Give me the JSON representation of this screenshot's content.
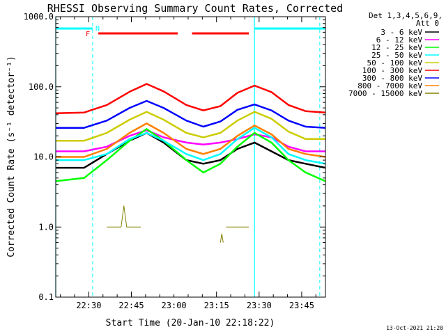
{
  "chart_data": {
    "type": "line",
    "title": "RHESSI Observing Summary Count Rates, Corrected",
    "xlabel": "Start Time (20-Jan-10 22:18:22)",
    "ylabel": "Corrected Count Rate (s⁻¹ detector⁻¹)",
    "y_scale": "log",
    "ylim": [
      0.1,
      1000
    ],
    "xlim_minutes_after_start": [
      0,
      95
    ],
    "y_tick_labels": [
      "0.1",
      "1.0",
      "10.0",
      "100.0",
      "1000.0"
    ],
    "x_tick_labels": [
      "22:30",
      "22:45",
      "23:00",
      "23:15",
      "23:30",
      "23:45"
    ],
    "detectors": "Det 1,3,4,5,6,9,",
    "attenuator": "Att 0",
    "flags": {
      "F": "F",
      "N": "N"
    },
    "timestamp": "13-Oct-2021 21:20",
    "series": [
      {
        "name": "3 - 6 keV",
        "color": "#000000",
        "x": [
          0,
          10,
          18,
          26,
          32,
          38,
          46,
          52,
          58,
          64,
          70,
          76,
          82,
          88,
          95
        ],
        "y": [
          7,
          7,
          11,
          17,
          22,
          16,
          9,
          8,
          9,
          13,
          16,
          12,
          9,
          8,
          7
        ]
      },
      {
        "name": "6 - 12 keV",
        "color": "#ff00ff",
        "x": [
          0,
          10,
          18,
          26,
          32,
          38,
          46,
          52,
          58,
          64,
          70,
          76,
          82,
          88,
          95
        ],
        "y": [
          12,
          12,
          14,
          20,
          24,
          19,
          16,
          15,
          16,
          18,
          21,
          19,
          14,
          12,
          12
        ]
      },
      {
        "name": "12 - 25 keV",
        "color": "#00ff00",
        "x": [
          0,
          10,
          18,
          26,
          32,
          38,
          46,
          52,
          58,
          64,
          70,
          76,
          82,
          88,
          95
        ],
        "y": [
          4.5,
          5,
          9,
          17,
          25,
          17,
          9,
          6,
          8,
          14,
          22,
          16,
          9,
          6,
          4.5
        ]
      },
      {
        "name": "25 - 50 keV",
        "color": "#00ffff",
        "x": [
          0,
          10,
          18,
          26,
          32,
          38,
          46,
          52,
          58,
          64,
          70,
          76,
          82,
          88,
          95
        ],
        "y": [
          9,
          9,
          11,
          18,
          22,
          17,
          11,
          9,
          11,
          18,
          26,
          19,
          11,
          9,
          8
        ]
      },
      {
        "name": "50 - 100 keV",
        "color": "#cccc00",
        "x": [
          0,
          10,
          18,
          26,
          32,
          38,
          46,
          52,
          58,
          64,
          70,
          76,
          82,
          88,
          95
        ],
        "y": [
          17,
          17,
          22,
          34,
          44,
          34,
          22,
          19,
          22,
          33,
          44,
          35,
          23,
          18,
          18
        ]
      },
      {
        "name": "100 - 300 keV",
        "color": "#ff0000",
        "x": [
          0,
          10,
          18,
          26,
          32,
          38,
          46,
          52,
          58,
          64,
          70,
          76,
          82,
          88,
          95
        ],
        "y": [
          42,
          43,
          55,
          85,
          110,
          86,
          55,
          46,
          53,
          82,
          104,
          84,
          55,
          45,
          43
        ]
      },
      {
        "name": "300 - 800 keV",
        "color": "#0000ff",
        "x": [
          0,
          10,
          18,
          26,
          32,
          38,
          46,
          52,
          58,
          64,
          70,
          76,
          82,
          88,
          95
        ],
        "y": [
          26,
          26,
          33,
          50,
          63,
          50,
          33,
          27,
          32,
          47,
          56,
          46,
          33,
          27,
          26
        ]
      },
      {
        "name": "800 - 7000 keV",
        "color": "#ff8000",
        "x": [
          0,
          10,
          18,
          26,
          32,
          38,
          46,
          52,
          58,
          64,
          70,
          76,
          82,
          88,
          95
        ],
        "y": [
          10,
          10,
          13,
          22,
          30,
          22,
          13,
          11,
          13,
          20,
          28,
          21,
          13,
          11,
          10
        ]
      },
      {
        "name": "7000 - 15000 keV",
        "color": "#808000",
        "x": [
          18,
          23,
          24,
          25,
          26,
          30
        ],
        "y": [
          1.0,
          1.0,
          2.0,
          1.0,
          1.0,
          1.0
        ]
      }
    ],
    "extra_segments": [
      {
        "series": "7000 - 15000 keV",
        "x": [
          58,
          58.5,
          59
        ],
        "y": [
          0.6,
          0.8,
          0.6
        ]
      },
      {
        "series": "7000 - 15000 keV",
        "x": [
          60,
          68
        ],
        "y": [
          1.0,
          1.0
        ]
      }
    ],
    "flag_bars": [
      {
        "label": "N",
        "color": "#00ffff",
        "ranges": [
          [
            0,
            13
          ],
          [
            70,
            95
          ]
        ]
      },
      {
        "label": "F",
        "color": "#ff0000",
        "ranges": [
          [
            15,
            43
          ],
          [
            48,
            68
          ]
        ]
      }
    ],
    "vlines_solid_min": [
      0,
      70
    ],
    "vlines_dashed_min": [
      13,
      93
    ]
  }
}
